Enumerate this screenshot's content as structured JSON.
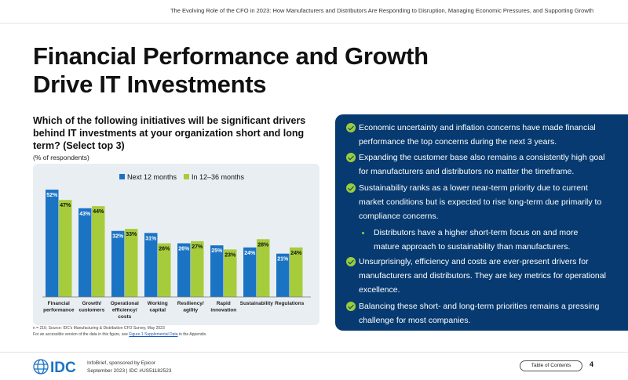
{
  "header": {
    "report_title": "The Evolving Role of the CFO in 2023: How Manufacturers and Distributors Are Responding to Disruption, Managing Economic Pressures, and Supporting Growth"
  },
  "page_title_line1": "Financial Performance and Growth",
  "page_title_line2": "Drive IT Investments",
  "question": "Which of the following initiatives will be significant drivers behind IT investments at your organization short and long term? (Select top 3)",
  "respondents": "(% of respondents)",
  "chart_data": {
    "type": "bar",
    "categories": [
      [
        "Financial",
        "performance"
      ],
      [
        "Growth/",
        "customers"
      ],
      [
        "Operational",
        "efficiency/",
        "costs"
      ],
      [
        "Working",
        "capital"
      ],
      [
        "Resiliency/",
        "agility"
      ],
      [
        "Rapid",
        "innovation"
      ],
      [
        "Sustainability"
      ],
      [
        "Regulations"
      ]
    ],
    "series": [
      {
        "name": "Next 12 months",
        "color": "#1b73c4",
        "values": [
          52,
          43,
          32,
          31,
          26,
          25,
          24,
          21
        ],
        "labels": [
          "52%",
          "43%",
          "32%",
          "31%",
          "26%",
          "25%",
          "24%",
          "21%"
        ]
      },
      {
        "name": "In 12–36 months",
        "color": "#a7cc3b",
        "values": [
          47,
          44,
          33,
          26,
          27,
          23,
          28,
          24
        ],
        "labels": [
          "47%",
          "44%",
          "33%",
          "26%",
          "27%",
          "23%",
          "28%",
          "24%"
        ]
      }
    ],
    "ylim": [
      0,
      60
    ],
    "legend_position": "top",
    "grid": false
  },
  "source_note": {
    "line1": "n = 216; Source: IDC's Manufacturing & Distribution CFO Survey, May 2023",
    "line2_prefix": "For an accessible version of the data in this figure, see ",
    "line2_link": "Figure 1 Supplemental Data",
    "line2_suffix": " in the Appendix."
  },
  "bullets": [
    "Economic uncertainty and inflation concerns have made financial performance the top concerns during the next 3 years.",
    "Expanding the customer base also remains a consistently high goal for manufacturers and distributors no matter the timeframe.",
    "Sustainability ranks as a lower near-term priority due to current market conditions but is expected to rise long-term due primarily to compliance concerns.",
    "Unsurprisingly, efficiency and costs are ever-present drivers for manufacturers and distributors. They are key metrics for operational excellence.",
    "Balancing these short- and long-term priorities remains a pressing challenge for most companies."
  ],
  "sub_bullet": "Distributors have a higher short-term focus on and more mature approach to sustainability than manufacturers.",
  "footer": {
    "logo_text": "IDC",
    "line1": "InfoBrief, sponsored by Epicor",
    "line2": "September 2023  |  IDC #US51182523",
    "toc_label": "Table of Contents",
    "page_number": "4"
  },
  "colors": {
    "panel": "#063a70",
    "accent": "#a7cc3b",
    "primary": "#1b73c4"
  }
}
